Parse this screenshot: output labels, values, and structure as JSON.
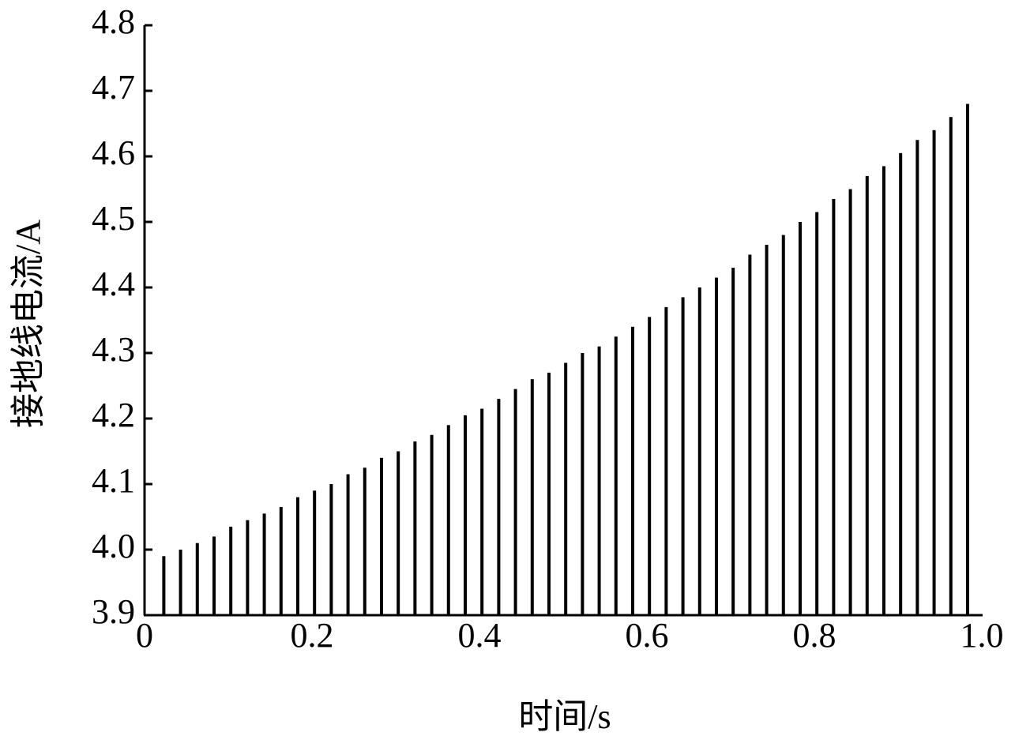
{
  "chart_data": {
    "type": "bar",
    "x_label": "时间/s",
    "y_label": "接地线电流/A",
    "x": [
      0.023,
      0.043,
      0.063,
      0.083,
      0.103,
      0.123,
      0.143,
      0.163,
      0.183,
      0.203,
      0.223,
      0.243,
      0.263,
      0.283,
      0.303,
      0.323,
      0.343,
      0.363,
      0.383,
      0.403,
      0.423,
      0.443,
      0.463,
      0.483,
      0.503,
      0.523,
      0.543,
      0.563,
      0.583,
      0.603,
      0.623,
      0.643,
      0.663,
      0.683,
      0.703,
      0.723,
      0.743,
      0.763,
      0.783,
      0.803,
      0.823,
      0.843,
      0.863,
      0.883,
      0.903,
      0.923,
      0.943,
      0.963,
      0.983
    ],
    "values": [
      3.99,
      4.0,
      4.01,
      4.02,
      4.035,
      4.045,
      4.055,
      4.065,
      4.08,
      4.09,
      4.1,
      4.115,
      4.125,
      4.14,
      4.15,
      4.165,
      4.175,
      4.19,
      4.205,
      4.215,
      4.23,
      4.245,
      4.26,
      4.27,
      4.285,
      4.3,
      4.31,
      4.325,
      4.34,
      4.355,
      4.37,
      4.385,
      4.4,
      4.415,
      4.43,
      4.45,
      4.465,
      4.48,
      4.5,
      4.515,
      4.535,
      4.55,
      4.57,
      4.585,
      4.605,
      4.625,
      4.64,
      4.66,
      4.68
    ],
    "color": "#000000",
    "xlim": [
      0,
      1
    ],
    "xticks": [
      0,
      0.2,
      0.4,
      0.6,
      0.8,
      {
        "value": 1,
        "label": "1.0"
      }
    ],
    "ylim": [
      3.9,
      4.8
    ],
    "yticks": [
      3.9,
      {
        "value": 4,
        "label": "4.0"
      },
      4.1,
      4.2,
      4.3,
      4.4,
      4.5,
      4.6,
      4.7,
      4.8
    ]
  }
}
